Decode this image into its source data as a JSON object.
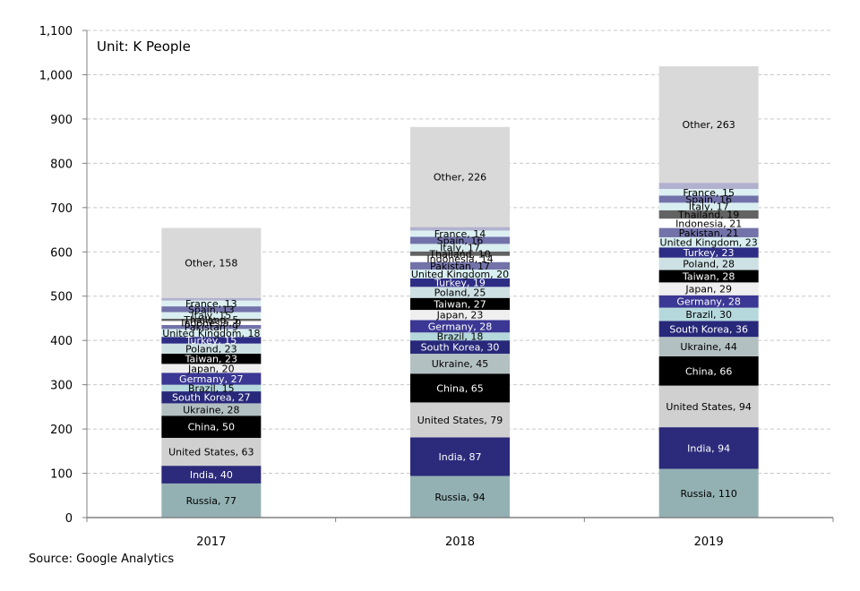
{
  "chart_data": {
    "type": "bar",
    "stacked": true,
    "title": "",
    "unit_label": "Unit: K People",
    "source": "Source: Google Analytics",
    "xlabel": "",
    "ylabel": "",
    "ylim": [
      0,
      1100
    ],
    "yticks": [
      0,
      100,
      200,
      300,
      400,
      500,
      600,
      700,
      800,
      900,
      1000,
      1100
    ],
    "ytick_labels": [
      "0",
      "100",
      "200",
      "300",
      "400",
      "500",
      "600",
      "700",
      "800",
      "900",
      "1,000",
      "1,100"
    ],
    "grid": true,
    "categories": [
      "2017",
      "2018",
      "2019"
    ],
    "series": [
      {
        "name": "Russia",
        "color": "#93b1b3",
        "text": "#000000",
        "values": [
          77,
          94,
          110
        ]
      },
      {
        "name": "India",
        "color": "#2b2a7b",
        "text": "#ffffff",
        "values": [
          40,
          87,
          94
        ]
      },
      {
        "name": "United States",
        "color": "#d0d0d0",
        "text": "#000000",
        "values": [
          63,
          79,
          94
        ]
      },
      {
        "name": "China",
        "color": "#000000",
        "text": "#ffffff",
        "values": [
          50,
          65,
          66
        ]
      },
      {
        "name": "Ukraine",
        "color": "#b3c0c2",
        "text": "#000000",
        "values": [
          28,
          45,
          44
        ]
      },
      {
        "name": "South Korea",
        "color": "#28287a",
        "text": "#ffffff",
        "values": [
          27,
          30,
          36
        ]
      },
      {
        "name": "Brazil",
        "color": "#b5d8dc",
        "text": "#000000",
        "values": [
          15,
          18,
          30
        ]
      },
      {
        "name": "Germany",
        "color": "#3b3794",
        "text": "#ffffff",
        "values": [
          27,
          28,
          28
        ]
      },
      {
        "name": "Japan",
        "color": "#efefef",
        "text": "#000000",
        "values": [
          20,
          23,
          29
        ]
      },
      {
        "name": "Taiwan",
        "color": "#000000",
        "text": "#ffffff",
        "values": [
          23,
          27,
          28
        ]
      },
      {
        "name": "Poland",
        "color": "#cde0e3",
        "text": "#000000",
        "values": [
          23,
          25,
          28
        ]
      },
      {
        "name": "Turkey",
        "color": "#2e2d85",
        "text": "#ffffff",
        "values": [
          15,
          19,
          23
        ]
      },
      {
        "name": "United Kingdom",
        "color": "#d8eef0",
        "text": "#000000",
        "values": [
          18,
          20,
          23
        ]
      },
      {
        "name": "Pakistan",
        "color": "#7373aa",
        "text": "#000000",
        "values": [
          9,
          17,
          21
        ]
      },
      {
        "name": "Indonesia",
        "color": "#ffffff",
        "text": "#000000",
        "values": [
          9,
          14,
          21
        ]
      },
      {
        "name": "Thailand",
        "color": "#636363",
        "text": "#000000",
        "values": [
          5,
          10,
          19
        ]
      },
      {
        "name": "Italy",
        "color": "#d9eef0",
        "text": "#000000",
        "values": [
          15,
          17,
          17
        ]
      },
      {
        "name": "Spain",
        "color": "#7272aa",
        "text": "#000000",
        "values": [
          13,
          16,
          16
        ]
      },
      {
        "name": "France",
        "color": "#dcf0f2",
        "text": "#000000",
        "values": [
          13,
          14,
          15
        ]
      },
      {
        "name": "",
        "color": "#b1b1cf",
        "text": "#000000",
        "values": [
          6,
          8,
          14
        ],
        "unlabeled": true
      },
      {
        "name": "Other",
        "color": "#d9d9d9",
        "text": "#000000",
        "values": [
          158,
          226,
          263
        ]
      }
    ]
  }
}
